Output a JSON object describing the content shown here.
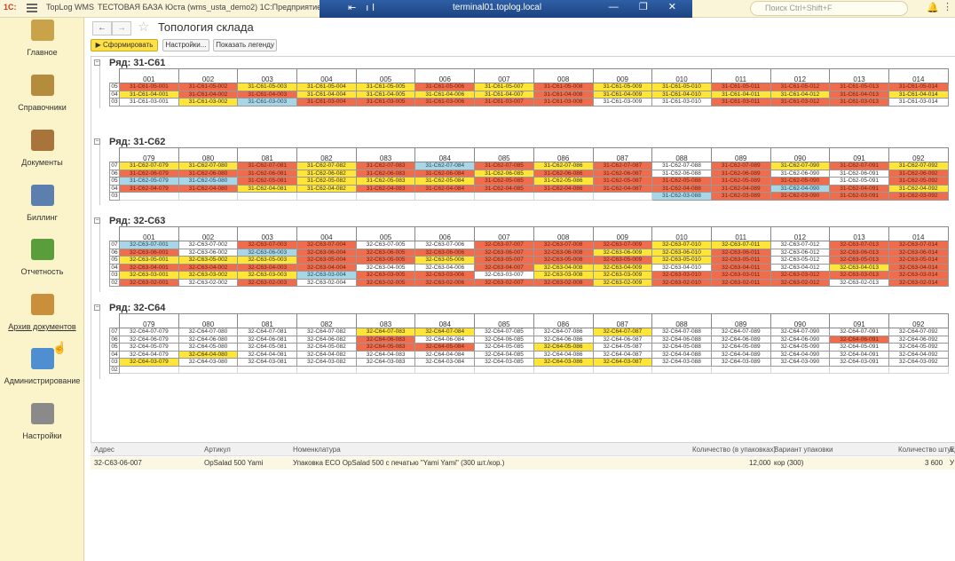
{
  "topbar": {
    "logo": "1С:",
    "app": "TopLog WMS",
    "base": "ТЕСТОВАЯ БАЗА",
    "user": "Юста (wms_usta_demo2) 1С:Предприятие",
    "rdp_title": "terminal01.toplog.local",
    "rdp_tools": "⇤ ıl",
    "rdp_ctrl": "— ❐ ✕",
    "search_placeholder": "Поиск Ctrl+Shift+F"
  },
  "sidebar": {
    "items": [
      {
        "label": "Главное",
        "color": "#c9a24a"
      },
      {
        "label": "Справочники",
        "color": "#b58b3d"
      },
      {
        "label": "Документы",
        "color": "#a8743a"
      },
      {
        "label": "Биллинг",
        "color": "#5d7fb0"
      },
      {
        "label": "Отчетность",
        "color": "#5a9e3c"
      },
      {
        "label": "Архив документов",
        "color": "#c98f3a"
      },
      {
        "label": "Администрирование",
        "color": "#4f8ed0"
      },
      {
        "label": "Настройки",
        "color": "#8a8a8a"
      }
    ]
  },
  "toolbar": {
    "back": "←",
    "forward": "→",
    "title": "Топология склада",
    "run": "▶ Сформировать",
    "settings": "Настройки...",
    "legend": "Показать легенду"
  },
  "groups": [
    {
      "title": "Ряд: 31-С61",
      "prefix": "31-С61",
      "cols": [
        "001",
        "002",
        "003",
        "004",
        "005",
        "006",
        "007",
        "008",
        "009",
        "010",
        "011",
        "012",
        "013",
        "014"
      ],
      "levels": [
        {
          "lvl": "05",
          "c": "rryyyryryyrrrr"
        },
        {
          "lvl": "04",
          "c": "yrryyyyryyyyry"
        },
        {
          "lvl": "03",
          "c": "wybrrrrrwwrrrw"
        }
      ]
    },
    {
      "title": "Ряд: 31-С62",
      "prefix": "31-С62",
      "cols": [
        "079",
        "080",
        "081",
        "082",
        "083",
        "084",
        "085",
        "086",
        "087",
        "088",
        "089",
        "090",
        "091",
        "092"
      ],
      "levels": [
        {
          "lvl": "07",
          "c": "yyryrbryrwryry"
        },
        {
          "lvl": "06",
          "c": "rrryrryrrwrwwr"
        },
        {
          "lvl": "05",
          "c": "bbryyyryrrrrwr"
        },
        {
          "lvl": "04",
          "c": "rryyrrrrrrrbry"
        },
        {
          "lvl": "03",
          "c": "eeeeeeeeebrrrr"
        }
      ]
    },
    {
      "title": "Ряд: 32-С63",
      "prefix": "32-С63",
      "cols": [
        "001",
        "002",
        "003",
        "004",
        "005",
        "006",
        "007",
        "008",
        "009",
        "010",
        "011",
        "012",
        "013",
        "014"
      ],
      "levels": [
        {
          "lvl": "07",
          "c": "bwrrwwrrryywrr"
        },
        {
          "lvl": "06",
          "c": "rwbrrrrryyrwrr"
        },
        {
          "lvl": "05",
          "c": "yyyrryrrryrwrr"
        },
        {
          "lvl": "04",
          "c": "rrrrwwryywrwyr"
        },
        {
          "lvl": "03",
          "c": "yyybrrwyyrrrrr"
        },
        {
          "lvl": "02",
          "c": "rwrwrrrryrrrwr"
        }
      ]
    },
    {
      "title": "Ряд: 32-С64",
      "prefix": "32-С64",
      "cols": [
        "079",
        "080",
        "081",
        "082",
        "083",
        "084",
        "085",
        "086",
        "087",
        "088",
        "089",
        "090",
        "091",
        "092"
      ],
      "levels": [
        {
          "lvl": "07",
          "c": "wwwwyywwywwwww"
        },
        {
          "lvl": "06",
          "c": "wwwwrwwwwwwwrw"
        },
        {
          "lvl": "05",
          "c": "wwwwrrwywwwwww"
        },
        {
          "lvl": "04",
          "c": "wywwwwwwwwwwww"
        },
        {
          "lvl": "03",
          "c": "ywwwwwwyywwwww"
        },
        {
          "lvl": "02",
          "c": "eeeeeeeeeeeeee"
        }
      ]
    }
  ],
  "detail": {
    "headers": [
      "Адрес",
      "Артикул",
      "Номенклатура",
      "Количество (в упаковках)",
      "Вариант упаковки",
      "Количество штук",
      "Ед"
    ],
    "row": [
      "32-С63-06-007",
      "OpSalad 500 Yami",
      "Упаковка ECO OpSalad 500 с печатью \"Yami Yami\" (300 шт./кор.)",
      "12,000",
      "кор (300)",
      "3 600",
      "У"
    ]
  },
  "colors": {
    "red": "#ef6d4c",
    "yellow": "#ffe537",
    "blue": "#a9d6e6",
    "white": "#ffffff"
  }
}
